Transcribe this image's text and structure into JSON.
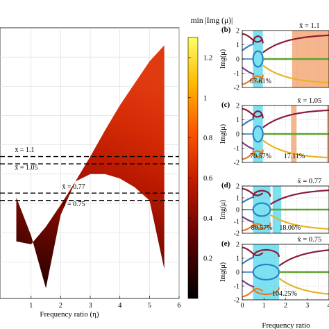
{
  "chart_data": [
    {
      "id": "a",
      "type": "heatmap",
      "title": "",
      "xlabel": "Frequency ratio (η)",
      "ylabel": "",
      "xlim": [
        0,
        6
      ],
      "xticks": [
        "1",
        "2",
        "3",
        "4",
        "5",
        "6"
      ],
      "grid": true,
      "colorbar": {
        "label": "min |Img (μ)|",
        "range": [
          0,
          1.3
        ],
        "ticks": [
          "0.2",
          "0.4",
          "0.6",
          "0.8",
          "1",
          "1.2"
        ]
      },
      "reference_lines": [
        {
          "label": "x̄ = 1.1"
        },
        {
          "label": "x̄ = 1.05"
        },
        {
          "label": "x̄ = 0.77"
        },
        {
          "label": "x̄ = 0.75"
        }
      ],
      "region_boundary": {
        "x": [
          0.5,
          1.0,
          1.5,
          2.0,
          2.5,
          3.0,
          3.5,
          4.0,
          4.5,
          5.0,
          5.5
        ],
        "upper_y": [
          0.34,
          0.32,
          0.44,
          0.59,
          0.75,
          0.92,
          1.1,
          1.27,
          1.42,
          1.57,
          1.68
        ],
        "lower_y": [
          0.64,
          0.38,
          0.02,
          0.52,
          0.75,
          0.8,
          0.8,
          0.77,
          0.71,
          0.62,
          0.15
        ]
      }
    },
    {
      "id": "b",
      "type": "line",
      "panel_label": "(b)",
      "title": "x̄ = 1.1",
      "ylabel": "Img(μ)",
      "ylim": [
        -2,
        2
      ],
      "yticks": [
        "2",
        "1",
        "0",
        "-1",
        "-2"
      ],
      "xlim": [
        0,
        4
      ],
      "xticks": [
        "0",
        "1",
        "2",
        "3",
        "4"
      ],
      "annotation": "67.61%",
      "unstable_bands": [
        [
          0.5,
          0.95
        ],
        [
          2.3,
          4.0
        ]
      ]
    },
    {
      "id": "c",
      "type": "line",
      "panel_label": "(c)",
      "title": "x̄ = 1.05",
      "ylabel": "Img(μ)",
      "ylim": [
        -2,
        2
      ],
      "yticks": [
        "2",
        "1",
        "0",
        "-1",
        "-2"
      ],
      "xlim": [
        0,
        4
      ],
      "xticks": [
        "0",
        "1",
        "2",
        "3",
        "4"
      ],
      "annotations": [
        "70.57%",
        "17.11%"
      ],
      "unstable_bands": [
        [
          0.5,
          0.95
        ],
        [
          2.25,
          2.5
        ],
        [
          3.9,
          4.0
        ]
      ]
    },
    {
      "id": "d",
      "type": "line",
      "panel_label": "(d)",
      "title": "x̄ = 0.77",
      "ylabel": "Img(μ)",
      "ylim": [
        -2,
        2
      ],
      "yticks": [
        "2",
        "1",
        "0",
        "-1",
        "-2"
      ],
      "xlim": [
        0,
        4
      ],
      "xticks": [
        "0",
        "1",
        "2",
        "3",
        "4"
      ],
      "annotations": [
        "80.57%",
        "18.06%"
      ],
      "unstable_bands": [
        [
          0.5,
          1.3
        ],
        [
          1.4,
          1.8
        ]
      ]
    },
    {
      "id": "e",
      "type": "line",
      "panel_label": "(e)",
      "title": "x̄ = 0.75",
      "ylabel": "Img(μ)",
      "ylim": [
        -2,
        2
      ],
      "yticks": [
        "2",
        "1",
        "0",
        "-1",
        "-2"
      ],
      "xlim": [
        0,
        4
      ],
      "xticks": [
        "0",
        "1",
        "2",
        "3",
        "4"
      ],
      "xlabel": "Frequency ratio",
      "annotation": "104.25%",
      "unstable_bands": [
        [
          0.5,
          1.7
        ]
      ]
    }
  ],
  "colors": {
    "band_cyan": "#4fd8ee",
    "band_orange": "#f5a36e",
    "curve_blue": "#2f7fc8",
    "curve_red": "#8b1b3a",
    "curve_orange": "#e07b2c",
    "curve_green": "#5ea32c",
    "curve_yellow": "#e8b325",
    "curve_purple": "#7d3b8f"
  }
}
